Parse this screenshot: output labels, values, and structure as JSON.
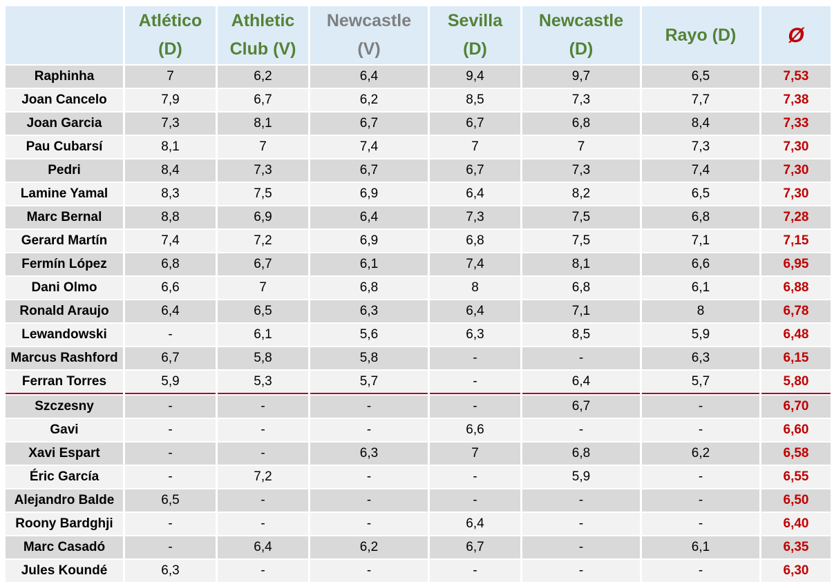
{
  "chart_data": {
    "type": "table",
    "columns": [
      {
        "line1": "Atlético",
        "line2": "(D)",
        "style": "draw"
      },
      {
        "line1": "Athletic",
        "line2": "Club (V)",
        "style": "win"
      },
      {
        "line1": "Newcastle",
        "line2": "(V)",
        "style": "loss"
      },
      {
        "line1": "Sevilla",
        "line2": "(D)",
        "style": "draw"
      },
      {
        "line1": "Newcastle",
        "line2": "(D)",
        "style": "draw"
      },
      {
        "line1": "Rayo (D)",
        "line2": "",
        "style": "draw"
      }
    ],
    "average_header": "Ø",
    "colors": {
      "header_bg": "#ddebf7",
      "header_green": "#548235",
      "header_grey": "#7f7f7f",
      "average_red": "#c00000",
      "row_dark": "#d9d9d9",
      "row_light": "#f2f2f2",
      "separator": "#a50021"
    },
    "separator_after_row": 13,
    "rows": [
      {
        "player": "Raphinha",
        "ratings": [
          "7",
          "6,2",
          "6,4",
          "9,4",
          "9,7",
          "6,5"
        ],
        "avg": "7,53"
      },
      {
        "player": "Joan Cancelo",
        "ratings": [
          "7,9",
          "6,7",
          "6,2",
          "8,5",
          "7,3",
          "7,7"
        ],
        "avg": "7,38"
      },
      {
        "player": "Joan Garcia",
        "ratings": [
          "7,3",
          "8,1",
          "6,7",
          "6,7",
          "6,8",
          "8,4"
        ],
        "avg": "7,33"
      },
      {
        "player": "Pau Cubarsí",
        "ratings": [
          "8,1",
          "7",
          "7,4",
          "7",
          "7",
          "7,3"
        ],
        "avg": "7,30"
      },
      {
        "player": "Pedri",
        "ratings": [
          "8,4",
          "7,3",
          "6,7",
          "6,7",
          "7,3",
          "7,4"
        ],
        "avg": "7,30"
      },
      {
        "player": "Lamine Yamal",
        "ratings": [
          "8,3",
          "7,5",
          "6,9",
          "6,4",
          "8,2",
          "6,5"
        ],
        "avg": "7,30"
      },
      {
        "player": "Marc Bernal",
        "ratings": [
          "8,8",
          "6,9",
          "6,4",
          "7,3",
          "7,5",
          "6,8"
        ],
        "avg": "7,28"
      },
      {
        "player": "Gerard Martín",
        "ratings": [
          "7,4",
          "7,2",
          "6,9",
          "6,8",
          "7,5",
          "7,1"
        ],
        "avg": "7,15"
      },
      {
        "player": "Fermín López",
        "ratings": [
          "6,8",
          "6,7",
          "6,1",
          "7,4",
          "8,1",
          "6,6"
        ],
        "avg": "6,95"
      },
      {
        "player": "Dani Olmo",
        "ratings": [
          "6,6",
          "7",
          "6,8",
          "8",
          "6,8",
          "6,1"
        ],
        "avg": "6,88"
      },
      {
        "player": "Ronald Araujo",
        "ratings": [
          "6,4",
          "6,5",
          "6,3",
          "6,4",
          "7,1",
          "8"
        ],
        "avg": "6,78"
      },
      {
        "player": "Lewandowski",
        "ratings": [
          "-",
          "6,1",
          "5,6",
          "6,3",
          "8,5",
          "5,9"
        ],
        "avg": "6,48"
      },
      {
        "player": "Marcus Rashford",
        "ratings": [
          "6,7",
          "5,8",
          "5,8",
          "-",
          "-",
          "6,3"
        ],
        "avg": "6,15"
      },
      {
        "player": "Ferran Torres",
        "ratings": [
          "5,9",
          "5,3",
          "5,7",
          "-",
          "6,4",
          "5,7"
        ],
        "avg": "5,80"
      },
      {
        "player": "Szczesny",
        "ratings": [
          "-",
          "-",
          "-",
          "-",
          "6,7",
          "-"
        ],
        "avg": "6,70"
      },
      {
        "player": "Gavi",
        "ratings": [
          "-",
          "-",
          "-",
          "6,6",
          "-",
          "-"
        ],
        "avg": "6,60"
      },
      {
        "player": "Xavi Espart",
        "ratings": [
          "-",
          "-",
          "6,3",
          "7",
          "6,8",
          "6,2"
        ],
        "avg": "6,58"
      },
      {
        "player": "Éric García",
        "ratings": [
          "-",
          "7,2",
          "-",
          "-",
          "5,9",
          "-"
        ],
        "avg": "6,55"
      },
      {
        "player": "Alejandro Balde",
        "ratings": [
          "6,5",
          "-",
          "-",
          "-",
          "-",
          "-"
        ],
        "avg": "6,50"
      },
      {
        "player": "Roony Bardghji",
        "ratings": [
          "-",
          "-",
          "-",
          "6,4",
          "-",
          "-"
        ],
        "avg": "6,40"
      },
      {
        "player": "Marc Casadó",
        "ratings": [
          "-",
          "6,4",
          "6,2",
          "6,7",
          "-",
          "6,1"
        ],
        "avg": "6,35"
      },
      {
        "player": "Jules Koundé",
        "ratings": [
          "6,3",
          "-",
          "-",
          "-",
          "-",
          "-"
        ],
        "avg": "6,30"
      }
    ]
  }
}
